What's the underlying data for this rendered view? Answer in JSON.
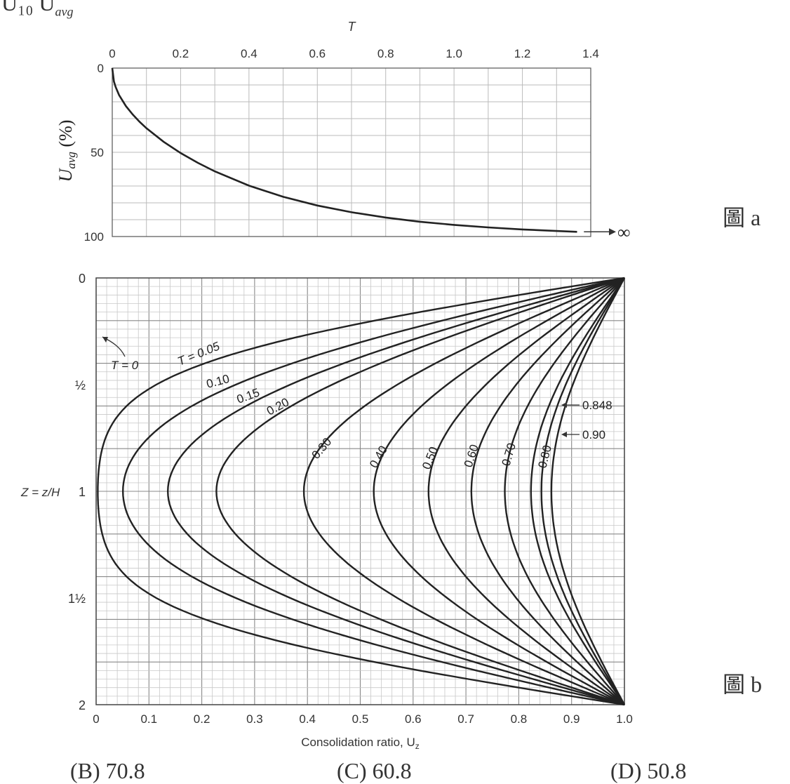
{
  "page": {
    "top_cut_text": "U₁₀           U",
    "top_cut_sub": "avg",
    "bottom_cut": [
      "(B) 70.8",
      "(C) 60.8",
      "(D) 50.8"
    ]
  },
  "chart_data": [
    {
      "type": "line",
      "panel_label": "圖 a",
      "title": "",
      "xlabel": "T",
      "ylabel_main": "U",
      "ylabel_sub": "avg",
      "ylabel_unit": "(%)",
      "x_axis_position": "top",
      "xlim": [
        0,
        1.4
      ],
      "ylim": [
        0,
        100
      ],
      "y_inverted": true,
      "x_ticks": [
        "0",
        "0.2",
        "0.4",
        "0.6",
        "0.8",
        "1.0",
        "1.2",
        "1.4"
      ],
      "y_ticks": [
        "0",
        "50",
        "100"
      ],
      "grid": true,
      "annotation": "∞",
      "series": [
        {
          "x": [
            0,
            0.005,
            0.01,
            0.02,
            0.04,
            0.06,
            0.08,
            0.1,
            0.15,
            0.2,
            0.25,
            0.3,
            0.4,
            0.5,
            0.6,
            0.7,
            0.8,
            0.9,
            1.0,
            1.1,
            1.2,
            1.3,
            1.36
          ],
          "values": [
            0,
            8,
            11.3,
            16,
            22.6,
            27.6,
            31.9,
            35.7,
            43.7,
            50.4,
            56.2,
            61.3,
            69.8,
            76.4,
            81.6,
            85.6,
            88.7,
            91.2,
            93.1,
            94.6,
            95.8,
            96.7,
            97.2
          ]
        }
      ]
    },
    {
      "type": "line",
      "panel_label": "圖 b",
      "title": "",
      "xlabel": "Consolidation ratio, U",
      "xlabel_sub": "z",
      "ylabel": "Z = z/H",
      "xlim": [
        0,
        1.0
      ],
      "ylim": [
        0,
        2
      ],
      "y_inverted": true,
      "x_ticks": [
        "0",
        "0.1",
        "0.2",
        "0.3",
        "0.4",
        "0.5",
        "0.6",
        "0.7",
        "0.8",
        "0.9",
        "1.0"
      ],
      "y_ticks": [
        "0",
        "½",
        "1",
        "1½",
        "2"
      ],
      "grid": true,
      "annotations": [
        "T = 0",
        "T = 0.05",
        "0.10",
        "0.15",
        "0.20",
        "0.30",
        "0.40",
        "0.50",
        "0.60",
        "0.70",
        "0.80",
        "0.848",
        "0.90"
      ],
      "series": [
        {
          "name": "0.05",
          "x": [
            1,
            0.87,
            0.72,
            0.57,
            0.42,
            0.28,
            0.17,
            0.08,
            0.03,
            0.01,
            0.03,
            0.08,
            0.17,
            0.28,
            0.42,
            0.57,
            0.72,
            0.87,
            1
          ],
          "y": [
            0,
            0.1,
            0.2,
            0.3,
            0.4,
            0.5,
            0.6,
            0.7,
            0.8,
            1.0,
            1.2,
            1.3,
            1.4,
            1.5,
            1.6,
            1.7,
            1.8,
            1.9,
            2
          ]
        },
        {
          "name": "0.10",
          "values_at_mid": 0.05
        },
        {
          "name": "0.15",
          "values_at_mid": 0.14
        },
        {
          "name": "0.20",
          "values_at_mid": 0.23
        },
        {
          "name": "0.30",
          "values_at_mid": 0.39
        },
        {
          "name": "0.40",
          "values_at_mid": 0.52
        },
        {
          "name": "0.50",
          "values_at_mid": 0.62
        },
        {
          "name": "0.60",
          "values_at_mid": 0.7
        },
        {
          "name": "0.70",
          "values_at_mid": 0.77
        },
        {
          "name": "0.80",
          "values_at_mid": 0.82
        },
        {
          "name": "0.848",
          "values_at_mid": 0.85
        },
        {
          "name": "0.90",
          "values_at_mid": 0.87
        }
      ]
    }
  ]
}
